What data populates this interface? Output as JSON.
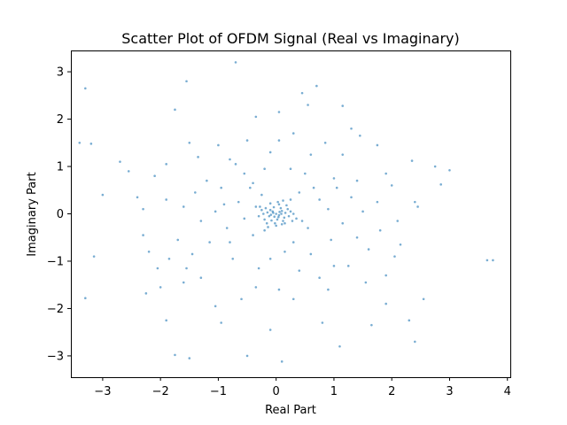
{
  "chart_data": {
    "type": "scatter",
    "title": "Scatter Plot of OFDM Signal (Real vs Imaginary)",
    "xlabel": "Real Part",
    "ylabel": "Imaginary Part",
    "xlim": [
      -3.55,
      4.05
    ],
    "ylim": [
      -3.45,
      3.45
    ],
    "xticks": [
      -3,
      -2,
      -1,
      0,
      1,
      2,
      3,
      4
    ],
    "yticks": [
      -3,
      -2,
      -1,
      0,
      1,
      2,
      3
    ],
    "xtick_labels": [
      "−3",
      "−2",
      "−1",
      "0",
      "1",
      "2",
      "3",
      "4"
    ],
    "ytick_labels": [
      "−3",
      "−2",
      "−1",
      "0",
      "1",
      "2",
      "3"
    ],
    "grid": false,
    "legend": "none",
    "marker_color": "#1f77b4",
    "marker_alpha": 0.6,
    "points": [
      [
        -3.3,
        2.65
      ],
      [
        -1.55,
        2.8
      ],
      [
        -0.7,
        3.2
      ],
      [
        -3.4,
        1.5
      ],
      [
        -3.2,
        1.48
      ],
      [
        -1.75,
        2.2
      ],
      [
        0.7,
        2.7
      ],
      [
        0.45,
        2.55
      ],
      [
        1.15,
        2.28
      ],
      [
        -0.35,
        2.05
      ],
      [
        0.05,
        2.15
      ],
      [
        0.55,
        2.3
      ],
      [
        1.3,
        1.8
      ],
      [
        1.45,
        1.65
      ],
      [
        1.75,
        1.45
      ],
      [
        2.35,
        1.12
      ],
      [
        2.75,
        1.0
      ],
      [
        3.0,
        0.92
      ],
      [
        -2.7,
        1.1
      ],
      [
        -2.55,
        0.9
      ],
      [
        -3.0,
        0.4
      ],
      [
        -2.4,
        0.35
      ],
      [
        -2.1,
        0.8
      ],
      [
        -1.5,
        1.5
      ],
      [
        -0.1,
        1.3
      ],
      [
        0.25,
        0.95
      ],
      [
        -0.7,
        1.05
      ],
      [
        -1.2,
        0.7
      ],
      [
        -0.4,
        0.65
      ],
      [
        1.0,
        0.75
      ],
      [
        1.9,
        0.85
      ],
      [
        2.0,
        0.6
      ],
      [
        2.85,
        0.62
      ],
      [
        -2.3,
        -0.45
      ],
      [
        -2.2,
        -0.8
      ],
      [
        -1.85,
        -0.95
      ],
      [
        -3.15,
        -0.9
      ],
      [
        -3.3,
        -1.78
      ],
      [
        -2.25,
        -1.68
      ],
      [
        -1.9,
        -2.25
      ],
      [
        -1.75,
        -2.98
      ],
      [
        -1.5,
        -3.05
      ],
      [
        -0.5,
        -3.0
      ],
      [
        0.1,
        -3.12
      ],
      [
        -0.1,
        -2.45
      ],
      [
        -0.95,
        -2.3
      ],
      [
        0.8,
        -2.3
      ],
      [
        1.1,
        -2.8
      ],
      [
        1.65,
        -2.35
      ],
      [
        2.3,
        -2.25
      ],
      [
        2.4,
        -2.7
      ],
      [
        2.55,
        -1.8
      ],
      [
        1.9,
        -1.9
      ],
      [
        2.05,
        -0.9
      ],
      [
        2.15,
        -0.65
      ],
      [
        3.65,
        -0.98
      ],
      [
        3.75,
        -0.98
      ],
      [
        1.0,
        -1.1
      ],
      [
        0.9,
        -1.6
      ],
      [
        0.3,
        -1.8
      ],
      [
        -0.35,
        -1.55
      ],
      [
        -1.3,
        -1.35
      ],
      [
        -1.6,
        -1.45
      ],
      [
        -2.0,
        -1.55
      ],
      [
        -0.8,
        -0.6
      ],
      [
        -0.4,
        -0.45
      ],
      [
        0.3,
        -0.6
      ],
      [
        0.6,
        -0.85
      ],
      [
        1.4,
        -0.5
      ],
      [
        1.6,
        -0.75
      ],
      [
        1.8,
        -0.35
      ],
      [
        2.1,
        -0.15
      ],
      [
        2.4,
        0.25
      ],
      [
        2.45,
        0.15
      ],
      [
        1.3,
        0.35
      ],
      [
        0.75,
        0.3
      ],
      [
        0.4,
        0.45
      ],
      [
        -0.25,
        0.4
      ],
      [
        -0.9,
        0.2
      ],
      [
        -1.6,
        0.15
      ],
      [
        -1.05,
        0.05
      ],
      [
        -1.3,
        -0.15
      ],
      [
        -1.9,
        0.3
      ],
      [
        -2.3,
        0.1
      ],
      [
        -0.55,
        -0.1
      ],
      [
        0.45,
        -0.15
      ],
      [
        0.9,
        0.1
      ],
      [
        1.15,
        -0.2
      ],
      [
        1.5,
        0.05
      ],
      [
        1.75,
        0.25
      ],
      [
        -0.65,
        0.25
      ],
      [
        -0.5,
        1.55
      ],
      [
        0.3,
        1.7
      ],
      [
        0.85,
        1.5
      ],
      [
        1.15,
        1.25
      ],
      [
        -1.0,
        1.45
      ],
      [
        -1.35,
        1.2
      ],
      [
        -1.9,
        1.05
      ],
      [
        -0.2,
        0.95
      ],
      [
        0.6,
        1.25
      ],
      [
        -1.15,
        -0.6
      ],
      [
        -0.75,
        -0.95
      ],
      [
        -0.3,
        -1.15
      ],
      [
        0.4,
        -1.2
      ],
      [
        0.75,
        -1.35
      ],
      [
        1.25,
        -1.1
      ],
      [
        1.55,
        -1.45
      ],
      [
        -0.6,
        -1.8
      ],
      [
        0.05,
        -1.6
      ],
      [
        -1.05,
        -1.95
      ],
      [
        -1.45,
        -0.85
      ],
      [
        0.55,
        -0.3
      ],
      [
        -0.35,
        0.15
      ],
      [
        0.25,
        0.3
      ],
      [
        -0.2,
        -0.35
      ],
      [
        0.35,
        -0.1
      ],
      [
        -0.45,
        0.55
      ],
      [
        0.65,
        0.55
      ],
      [
        -0.85,
        -0.3
      ],
      [
        -1.7,
        -0.55
      ],
      [
        1.05,
        0.55
      ],
      [
        1.4,
        0.7
      ],
      [
        -1.4,
        0.45
      ],
      [
        -0.95,
        0.55
      ],
      [
        0.15,
        -0.8
      ],
      [
        -0.1,
        -0.95
      ],
      [
        0.5,
        0.85
      ],
      [
        -0.55,
        0.85
      ],
      [
        1.9,
        -1.3
      ],
      [
        -2.05,
        -1.15
      ],
      [
        -0.8,
        1.15
      ],
      [
        0.05,
        1.55
      ],
      [
        0.95,
        -0.55
      ],
      [
        -1.55,
        -1.15
      ],
      [
        -0.05,
        0.02
      ],
      [
        0.05,
        -0.03
      ],
      [
        -0.1,
        0.08
      ],
      [
        0.1,
        0.06
      ],
      [
        0.02,
        -0.12
      ],
      [
        -0.12,
        -0.05
      ],
      [
        0.14,
        -0.08
      ],
      [
        -0.04,
        0.14
      ],
      [
        0.08,
        0.12
      ],
      [
        -0.15,
        0.03
      ],
      [
        0.16,
        0.02
      ],
      [
        0.0,
        0.0
      ],
      [
        -0.08,
        -0.14
      ],
      [
        0.12,
        -0.15
      ],
      [
        -0.18,
        0.12
      ],
      [
        0.2,
        0.1
      ],
      [
        -0.02,
        -0.2
      ],
      [
        0.05,
        0.2
      ],
      [
        -0.2,
        -0.12
      ],
      [
        0.22,
        -0.05
      ],
      [
        -0.22,
        0.0
      ],
      [
        0.1,
        -0.22
      ],
      [
        -0.1,
        0.22
      ],
      [
        0.18,
        0.18
      ],
      [
        -0.16,
        -0.2
      ],
      [
        0.25,
        0.05
      ],
      [
        -0.25,
        0.08
      ],
      [
        0.03,
        0.25
      ],
      [
        0.0,
        -0.25
      ],
      [
        0.15,
        -0.2
      ],
      [
        -0.06,
        0.05
      ],
      [
        0.06,
        0.04
      ],
      [
        -0.03,
        -0.06
      ],
      [
        0.04,
        -0.07
      ],
      [
        -0.09,
        -0.02
      ],
      [
        0.09,
        0.0
      ],
      [
        0.3,
        0.0
      ],
      [
        -0.3,
        -0.05
      ],
      [
        0.28,
        -0.15
      ],
      [
        -0.28,
        0.15
      ],
      [
        0.12,
        0.28
      ],
      [
        -0.14,
        -0.28
      ]
    ]
  }
}
